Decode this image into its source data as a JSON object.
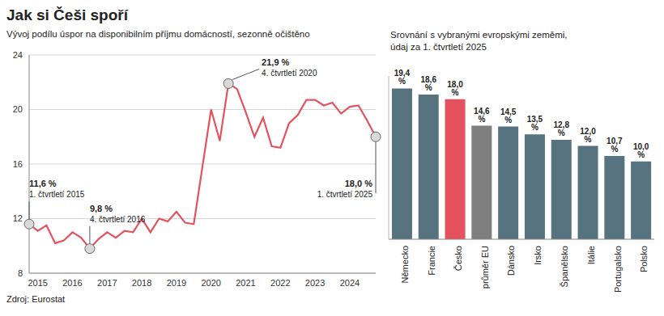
{
  "chart_data": [
    {
      "type": "line",
      "title": "Jak si Češi spoří",
      "subtitle": "Vývoj podílu úspor na disponibilním příjmu domácností, sezonně očištěno",
      "source": "Zdroj: Eurostat",
      "categories": [
        null,
        "2015",
        null,
        null,
        null,
        "2016",
        null,
        null,
        null,
        "2017",
        null,
        null,
        null,
        "2018",
        null,
        null,
        null,
        "2019",
        null,
        null,
        null,
        "2020",
        null,
        null,
        null,
        "2021",
        null,
        null,
        null,
        "2022",
        null,
        null,
        null,
        "2023",
        null,
        null,
        null,
        "2024",
        null,
        null,
        null
      ],
      "values": [
        11.6,
        11.1,
        11.5,
        10.2,
        10.4,
        11.0,
        10.6,
        9.8,
        10.5,
        11.0,
        10.6,
        11.1,
        11.0,
        12.0,
        11.0,
        12.0,
        11.8,
        12.5,
        11.7,
        11.6,
        15.8,
        20.0,
        17.7,
        21.9,
        21.5,
        19.8,
        18.0,
        19.4,
        17.3,
        17.2,
        19.0,
        19.6,
        20.7,
        20.7,
        20.3,
        20.5,
        19.7,
        20.2,
        20.3,
        19.2,
        18.0
      ],
      "color": "#e4525e",
      "ylim": [
        8,
        24
      ],
      "yticks": [
        8,
        12,
        16,
        20,
        24
      ],
      "grid": true,
      "annotations": [
        {
          "index": 0,
          "value": 11.6,
          "label": "11,6 %",
          "text": "1. čtvrtletí 2015"
        },
        {
          "index": 7,
          "value": 9.8,
          "label": "9,8 %",
          "text": "4. čtvrtletí 2016"
        },
        {
          "index": 23,
          "value": 21.9,
          "label": "21,9 %",
          "text": "4. čtvrtletí 2020"
        },
        {
          "index": 40,
          "value": 18.0,
          "label": "18,0 %",
          "text": "1. čtvrtletí 2025"
        }
      ]
    },
    {
      "type": "bar",
      "title": "Srovnání s vybranými evropskými zeměmi,\núdaj za 1. čtvrtletí 2025",
      "categories": [
        "Německo",
        "Francie",
        "Česko",
        "průměr EU",
        "Dánsko",
        "Irsko",
        "Španělsko",
        "Itálie",
        "Portugalsko",
        "Polsko"
      ],
      "values": [
        19.4,
        18.6,
        18.0,
        14.6,
        14.5,
        13.5,
        12.8,
        12.0,
        10.7,
        10.0
      ],
      "value_labels": [
        "19,4 %",
        "18,6 %",
        "18,0 %",
        "14,6 %",
        "14,5 %",
        "13,5 %",
        "12,8 %",
        "12,0 %",
        "10,7 %",
        "10,0 %"
      ],
      "colors": [
        "#56737f",
        "#56737f",
        "#e4525e",
        "#7f7f7f",
        "#56737f",
        "#56737f",
        "#56737f",
        "#56737f",
        "#56737f",
        "#56737f"
      ],
      "ylim": [
        0,
        21
      ],
      "data_labels": true,
      "tick_labels": "x"
    }
  ]
}
